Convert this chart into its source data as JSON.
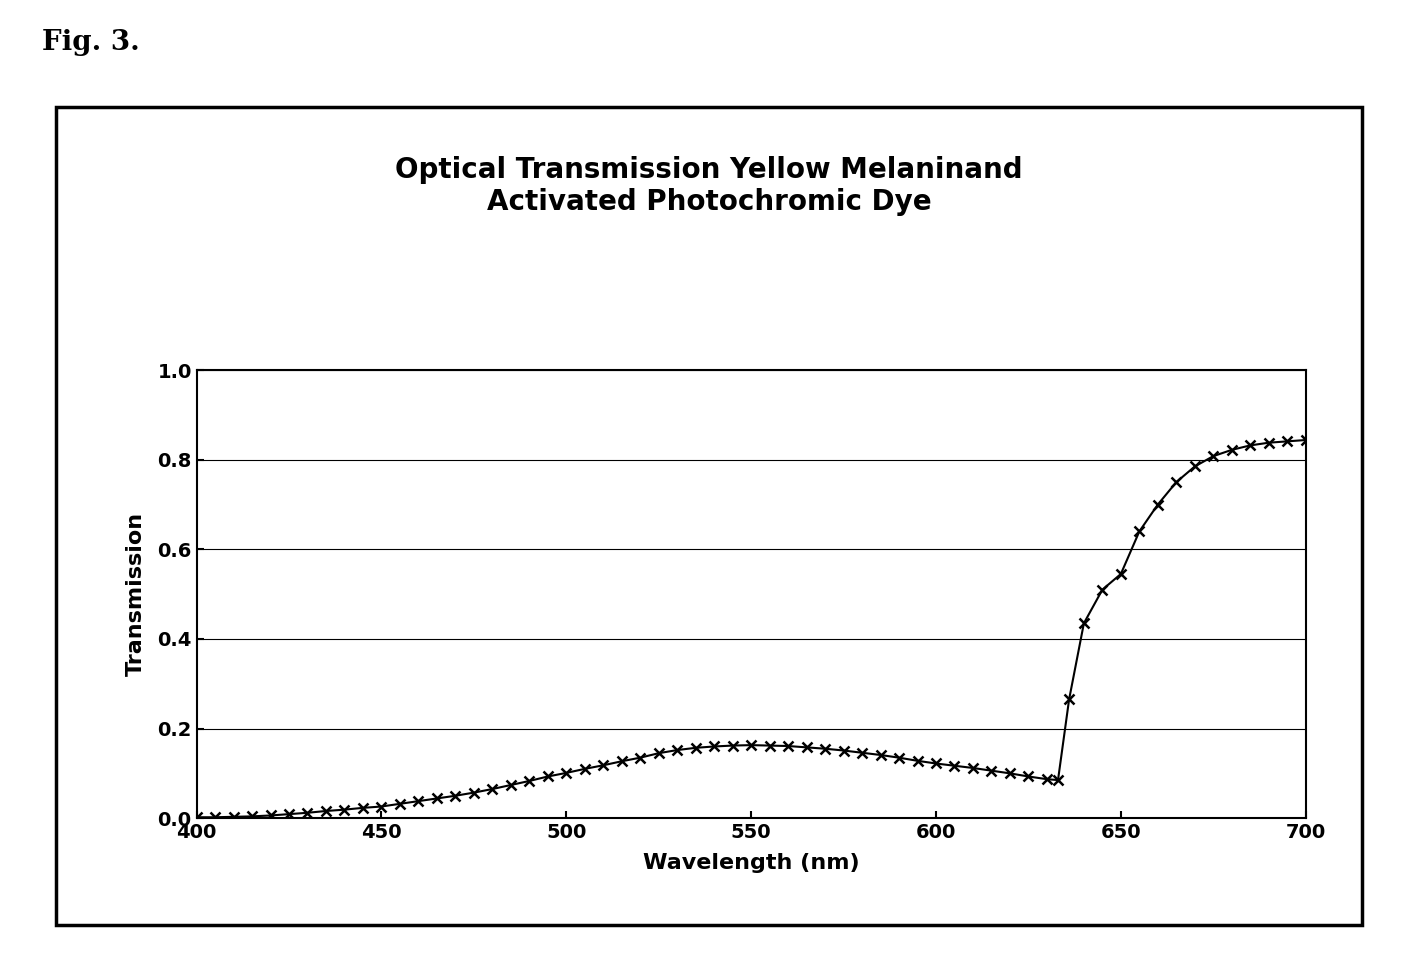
{
  "title_line1": "Optical Transmission Yellow Melaninand",
  "title_line2": "Activated Photochromic Dye",
  "xlabel": "Wavelength (nm)",
  "ylabel": "Transmission",
  "fig_label": "Fig. 3.",
  "xlim": [
    400,
    700
  ],
  "ylim": [
    0,
    1
  ],
  "xticks": [
    400,
    450,
    500,
    550,
    600,
    650,
    700
  ],
  "yticks": [
    0,
    0.2,
    0.4,
    0.6,
    0.8,
    1
  ],
  "line_color": "#000000",
  "marker": "x",
  "background": "#ffffff",
  "curve1_x": [
    400,
    405,
    410,
    415,
    420,
    425,
    430,
    435,
    440,
    445,
    450,
    455,
    460,
    465,
    470,
    475,
    480,
    485,
    490,
    495,
    500,
    505,
    510,
    515,
    520,
    525,
    530,
    535,
    540,
    545,
    550,
    555,
    560,
    565,
    570,
    575,
    580,
    585,
    590,
    595,
    600,
    605,
    610,
    615,
    620,
    625,
    630,
    633,
    636,
    640,
    645,
    650,
    655,
    660,
    665,
    670,
    675,
    680,
    685,
    690,
    695,
    700
  ],
  "curve1_y": [
    0.002,
    0.002,
    0.003,
    0.004,
    0.006,
    0.009,
    0.012,
    0.016,
    0.019,
    0.023,
    0.026,
    0.032,
    0.038,
    0.044,
    0.05,
    0.057,
    0.065,
    0.074,
    0.083,
    0.093,
    0.101,
    0.11,
    0.118,
    0.127,
    0.135,
    0.145,
    0.152,
    0.157,
    0.16,
    0.162,
    0.163,
    0.162,
    0.161,
    0.158,
    0.155,
    0.151,
    0.146,
    0.141,
    0.135,
    0.128,
    0.122,
    0.117,
    0.112,
    0.106,
    0.1,
    0.093,
    0.087,
    0.085,
    0.265,
    0.435,
    0.51,
    0.545,
    0.64,
    0.7,
    0.75,
    0.785,
    0.808,
    0.822,
    0.832,
    0.838,
    0.841,
    0.844
  ],
  "fig_label_fontsize": 20,
  "title_fontsize": 20,
  "axis_label_fontsize": 16,
  "tick_fontsize": 14
}
